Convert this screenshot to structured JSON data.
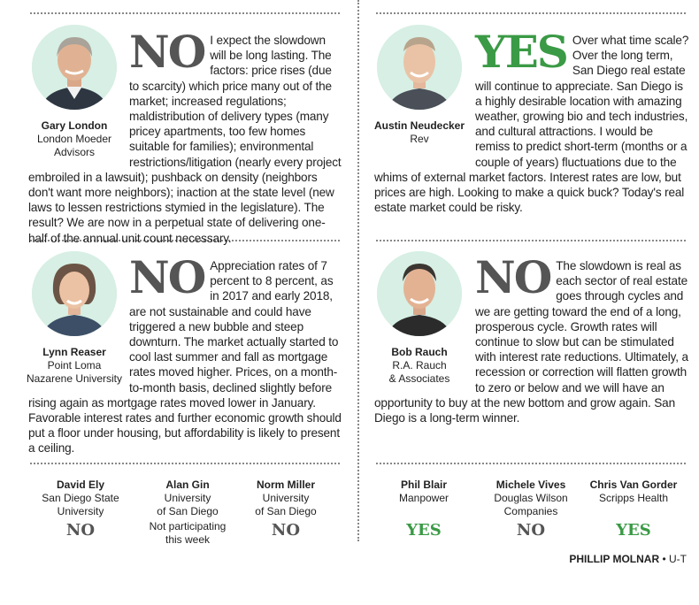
{
  "entries": [
    {
      "id": "gary",
      "name": "Gary London",
      "org1": "London Moeder",
      "org2": "Advisors",
      "verdict": "NO",
      "lead": "I expect the slowdown will be long lasting. The factors: price rises (due to scarcity) which price many out of the market; increased regulations; maldistribution of delivery types (many pricey apartments, too few homes suitable for families); environmental restrictions/litigation (nearly every project embroiled in a lawsuit); pushback on density (neighbors don't want more neighbors); inaction at the state level (new laws to lessen restrictions stymied in the legislature). The result? We are now in a perpetual state of delivering one-half of the annual unit count necessary."
    },
    {
      "id": "austin",
      "name": "Austin Neudecker",
      "org1": "Rev",
      "org2": "",
      "verdict": "YES",
      "lead": "Over what time scale? Over the long term, San Diego real estate will continue to appreciate. San Diego is a highly desirable location with amazing weather, growing bio and tech industries, and cultural attractions. I would be remiss to predict short-term (months or a couple of years) fluctuations due to the whims of external market factors. Interest rates are low, but prices are high. Looking to make a quick buck? Today's real estate market could be risky."
    },
    {
      "id": "lynn",
      "name": "Lynn Reaser",
      "org1": "Point Loma",
      "org2": "Nazarene University",
      "verdict": "NO",
      "lead": "Appreciation rates of 7 percent to 8 percent, as in 2017 and early 2018, are not sustainable and could have triggered a new bubble and steep downturn. The market actually started to cool last summer and fall as mortgage rates moved higher. Prices, on a month-to-month basis, declined slightly before rising again as mortgage rates moved lower in January. Favorable interest rates and further economic growth should put a floor under housing, but affordability is likely to present a ceiling."
    },
    {
      "id": "bob",
      "name": "Bob Rauch",
      "org1": "R.A. Rauch",
      "org2": "& Associates",
      "verdict": "NO",
      "lead": "The slowdown is real as each sector of real estate goes through cycles and we are getting toward the end of a long, prosperous cycle. Growth rates will continue to slow but can be stimulated with interest rate reductions. Ultimately, a recession or correction will flatten growth to zero or below and we will have an opportunity to buy at the new bottom and grow again. San Diego is a long-term winner."
    }
  ],
  "panel_left": [
    {
      "name": "David Ely",
      "org1": "San Diego State",
      "org2": "University",
      "verdict": "NO",
      "note": ""
    },
    {
      "name": "Alan Gin",
      "org1": "University",
      "org2": "of San Diego",
      "verdict": "",
      "note1": "Not participating",
      "note2": "this week"
    },
    {
      "name": "Norm Miller",
      "org1": "University",
      "org2": "of San Diego",
      "verdict": "NO",
      "note": ""
    }
  ],
  "panel_right": [
    {
      "name": "Phil Blair",
      "org1": "Manpower",
      "org2": "",
      "verdict": "YES"
    },
    {
      "name": "Michele Vives",
      "org1": "Douglas Wilson",
      "org2": "Companies",
      "verdict": "NO"
    },
    {
      "name": "Chris Van Gorder",
      "org1": "Scripps Health",
      "org2": "",
      "verdict": "YES"
    }
  ],
  "credit": {
    "author": "PHILLIP MOLNAR",
    "source": "U-T"
  },
  "colors": {
    "yes": "#3a9a45",
    "no": "#555555",
    "photo_bg": "#d7efe4"
  }
}
